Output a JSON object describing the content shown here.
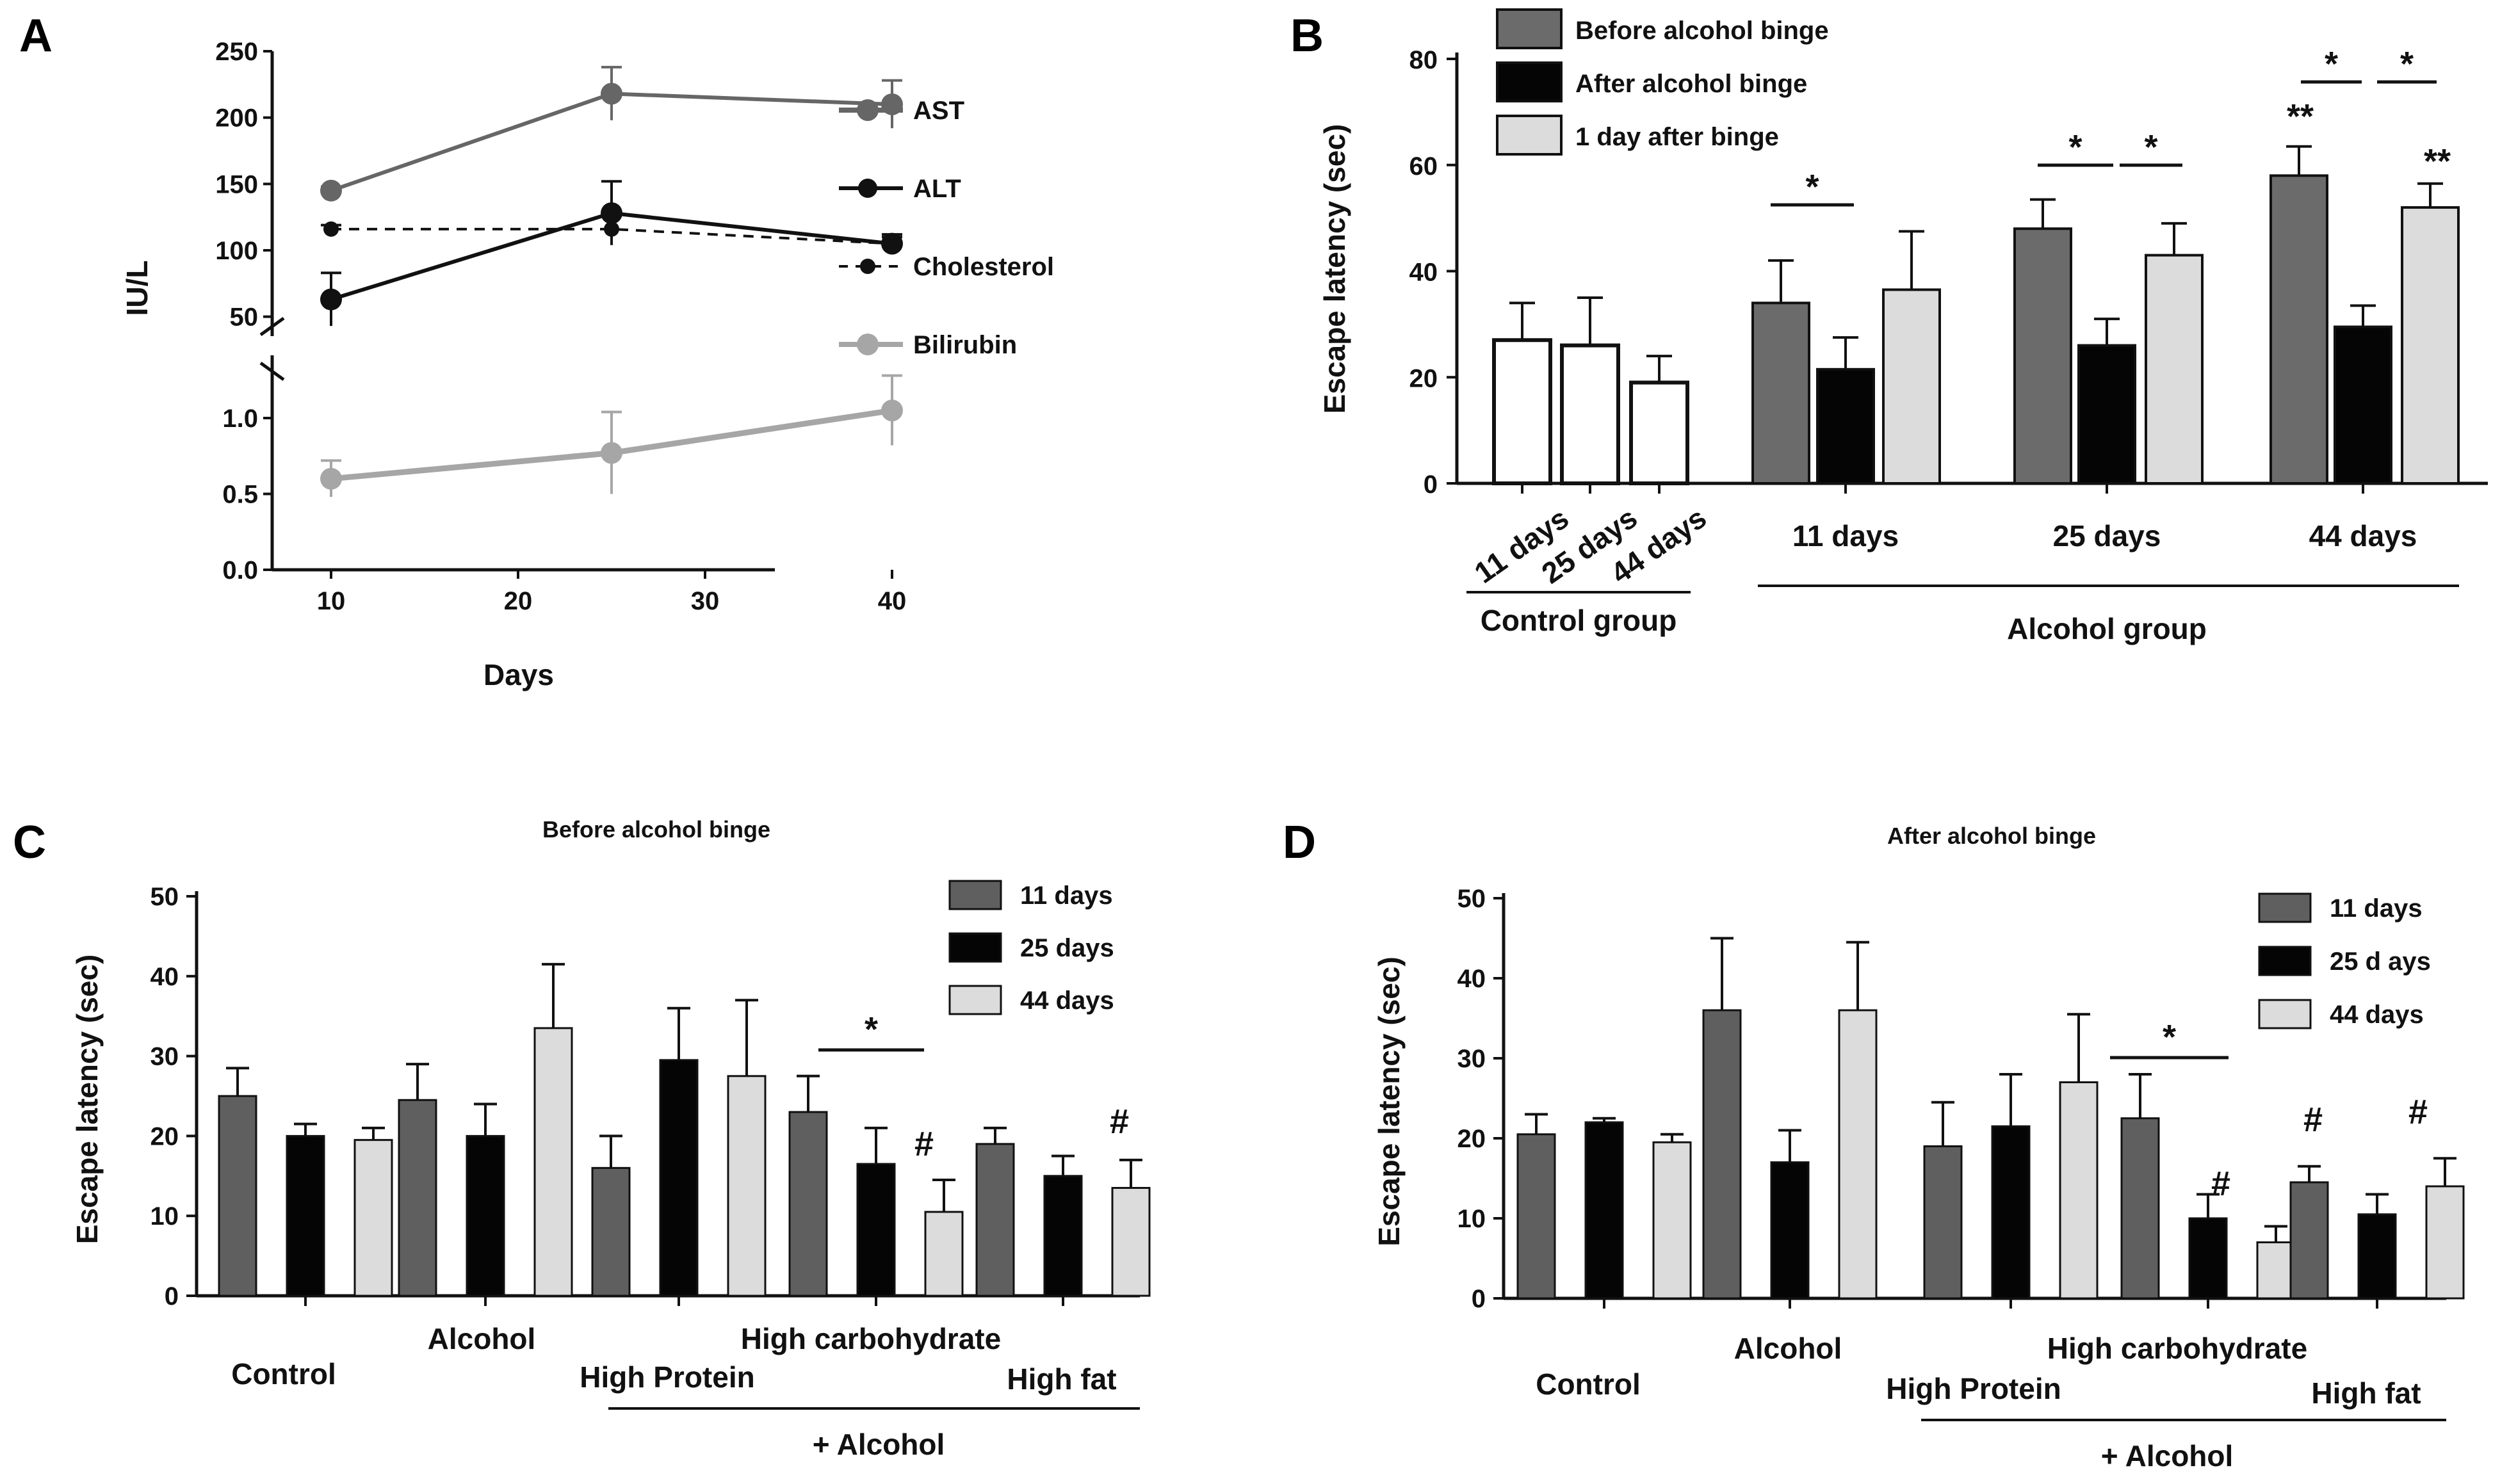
{
  "colors": {
    "ast": "#666666",
    "alt": "#111111",
    "cholesterol": "#111111",
    "bilirubin": "#a6a6a6",
    "before": "#6b6b6b",
    "after": "#050505",
    "oneday": "#dcdcdc",
    "control": "#ffffff",
    "d11": "#5f5f5f",
    "d25": "#050505",
    "d44": "#dcdcdc"
  },
  "chart_data": [
    {
      "panel": "A",
      "type": "line",
      "xlabel": "Days",
      "ylabel": "IU/L",
      "x": [
        10,
        25,
        40
      ],
      "xticks": [
        "10",
        "20",
        "30",
        "40"
      ],
      "upper": {
        "ylim": [
          45,
          250
        ],
        "yticks": [
          "250",
          "200",
          "150",
          "100",
          "50"
        ],
        "series": [
          {
            "name": "AST",
            "values": [
              145,
              218,
              210
            ],
            "err": [
              3,
              20,
              18
            ]
          },
          {
            "name": "ALT",
            "values": [
              63,
              128,
              105
            ],
            "err": [
              20,
              24,
              7
            ]
          },
          {
            "name": "Cholesterol",
            "values": [
              116,
              116,
              105
            ],
            "err": [
              3,
              12,
              5
            ]
          }
        ]
      },
      "lower": {
        "ylim": [
          0,
          1.2
        ],
        "yticks": [
          "1.0",
          "0.5",
          "0.0"
        ],
        "series": [
          {
            "name": "Bilirubin",
            "values": [
              0.6,
              0.77,
              1.05
            ],
            "err": [
              0.12,
              0.27,
              0.23
            ]
          }
        ]
      },
      "legend": [
        "AST",
        "ALT",
        "Cholesterol",
        "Bilirubin"
      ]
    },
    {
      "panel": "B",
      "type": "bar",
      "ylabel": "Escape latency (sec)",
      "ylim": [
        0,
        80
      ],
      "yticks": [
        "80",
        "60",
        "40",
        "20",
        "0"
      ],
      "legend": [
        "Before alcohol binge",
        "After alcohol binge",
        "1 day after binge"
      ],
      "control": {
        "labels": [
          "11 days",
          "25 days",
          "44 days"
        ],
        "values": [
          27,
          26,
          19
        ],
        "err": [
          7,
          9,
          5
        ]
      },
      "alcohol_groups": [
        {
          "label": "11 days",
          "values": [
            34,
            21.5,
            36.5
          ],
          "err": [
            8,
            6,
            11
          ]
        },
        {
          "label": "25 days",
          "values": [
            48,
            26,
            43
          ],
          "err": [
            5.5,
            5,
            6
          ]
        },
        {
          "label": "44 days",
          "values": [
            58,
            29.5,
            52
          ],
          "err": [
            5.5,
            4,
            4.5
          ]
        }
      ],
      "group_labels": [
        "Control group",
        "Alcohol group"
      ],
      "annotations": {
        "star": "*",
        "double_star": "**"
      }
    },
    {
      "panel": "C",
      "type": "bar",
      "title": "Before alcohol binge",
      "ylabel": "Escape latency (sec)",
      "ylim": [
        0,
        50
      ],
      "yticks": [
        "50",
        "40",
        "30",
        "20",
        "10",
        "0"
      ],
      "legend": [
        "11 days",
        "25 days",
        "44 days"
      ],
      "groups": [
        {
          "values": [
            25,
            20,
            19.5
          ],
          "err": [
            3.5,
            1.5,
            1.5
          ]
        },
        {
          "values": [
            24.5,
            20,
            33.5
          ],
          "err": [
            4.5,
            4,
            8
          ]
        },
        {
          "values": [
            16,
            29.5,
            27.5
          ],
          "err": [
            4,
            6.5,
            9.5
          ]
        },
        {
          "values": [
            23,
            16.5,
            10.5
          ],
          "err": [
            4.5,
            4.5,
            4
          ]
        },
        {
          "values": [
            19,
            15,
            13.5
          ],
          "err": [
            2,
            2.5,
            3.5
          ]
        }
      ],
      "labels": {
        "control": "Control",
        "alcohol": "Alcohol",
        "high_protein": "High Protein",
        "high_carbohydrate": "High carbohydrate",
        "high_fat": "High fat",
        "plus_alcohol": "+ Alcohol"
      },
      "annotations": {
        "star": "*",
        "hash": "#"
      }
    },
    {
      "panel": "D",
      "type": "bar",
      "title": "After alcohol binge",
      "ylabel": "Escape latency (sec)",
      "ylim": [
        0,
        50
      ],
      "yticks": [
        "50",
        "40",
        "30",
        "20",
        "10",
        "0"
      ],
      "legend": [
        "11  days",
        "25 d ays",
        "44 days"
      ],
      "groups": [
        {
          "values": [
            20.5,
            22,
            19.5
          ],
          "err": [
            2.5,
            0.5,
            1
          ]
        },
        {
          "values": [
            36,
            17,
            36
          ],
          "err": [
            9,
            4,
            8.5
          ]
        },
        {
          "values": [
            19,
            21.5,
            27
          ],
          "err": [
            5.5,
            6.5,
            8.5
          ]
        },
        {
          "values": [
            22.5,
            10,
            7
          ],
          "err": [
            5.5,
            3,
            2
          ]
        },
        {
          "values": [
            14.5,
            10.5,
            14
          ],
          "err": [
            2,
            2.5,
            3.5
          ]
        }
      ],
      "labels": {
        "control": "Control",
        "alcohol": "Alcohol",
        "high_protein": "High Protein",
        "high_carbohydrate": "High carbohydrate",
        "high_fat": "High fat",
        "plus_alcohol": "+ Alcohol"
      },
      "annotations": {
        "star": "*",
        "hash": "#"
      }
    }
  ]
}
